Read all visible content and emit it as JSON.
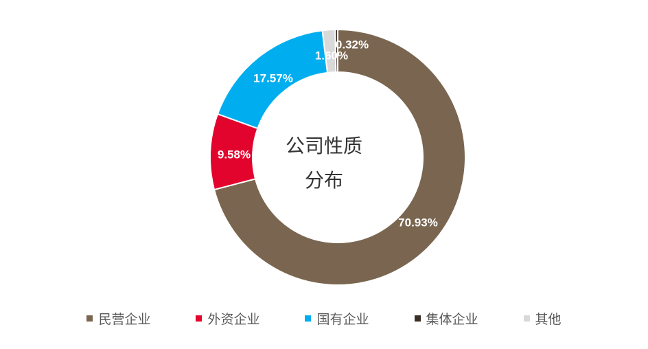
{
  "chart_data": {
    "type": "pie",
    "title": "公司性质分布",
    "title_lines": [
      "公司性质",
      "分布"
    ],
    "style": "donut",
    "legend_position": "bottom",
    "slices": [
      {
        "label": "民营企业",
        "value": 70.93,
        "display": "70.93%",
        "color": "#7A6650"
      },
      {
        "label": "外资企业",
        "value": 9.58,
        "display": "9.58%",
        "color": "#E3042E"
      },
      {
        "label": "国有企业",
        "value": 17.57,
        "display": "17.57%",
        "color": "#00AEEF"
      },
      {
        "label": "集体企业",
        "value": 0.32,
        "display": "0.32%",
        "color": "#3B2E25"
      },
      {
        "label": "其他",
        "value": 1.6,
        "display": "1.60%",
        "color": "#D9D9D9"
      }
    ]
  }
}
